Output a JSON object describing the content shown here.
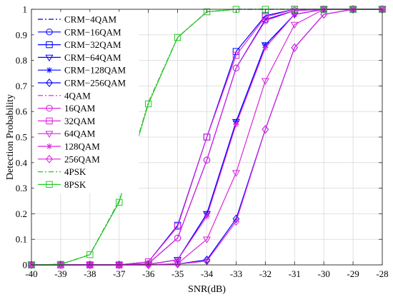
{
  "chart_data": {
    "type": "line",
    "xlabel": "SNR(dB)",
    "ylabel": "Detection Probability",
    "xlim": [
      -40,
      -28
    ],
    "ylim": [
      0,
      1
    ],
    "xticks": [
      -40,
      -39,
      -38,
      -37,
      -36,
      -35,
      -34,
      -33,
      -32,
      -31,
      -30,
      -29,
      -28
    ],
    "yticks": [
      0,
      0.1,
      0.2,
      0.3,
      0.4,
      0.5,
      0.6,
      0.7,
      0.8,
      0.9,
      1
    ],
    "grid": true,
    "legend_position": "top-left",
    "x": [
      -40,
      -39,
      -38,
      -37,
      -36,
      -35,
      -34,
      -33,
      -32,
      -31,
      -30,
      -29,
      -28
    ],
    "series": [
      {
        "name": "CRM−4QAM",
        "color": "#0000cc",
        "dash": "dashdot",
        "marker": "none",
        "values": [
          0,
          0.002,
          0.04,
          0.25,
          0.635,
          0.89,
          0.99,
          1,
          1,
          1,
          1,
          1,
          1
        ]
      },
      {
        "name": "CRM−16QAM",
        "color": "#0000ff",
        "dash": "solid",
        "marker": "circle",
        "values": [
          0,
          0,
          0,
          0,
          0.005,
          0.105,
          0.41,
          0.77,
          0.96,
          0.995,
          1,
          1,
          1
        ]
      },
      {
        "name": "CRM−32QAM",
        "color": "#0000ff",
        "dash": "solid",
        "marker": "square",
        "values": [
          0,
          0,
          0,
          0,
          0.012,
          0.155,
          0.5,
          0.835,
          0.975,
          1,
          1,
          1,
          1
        ]
      },
      {
        "name": "CRM−64QAM",
        "color": "#0000ff",
        "dash": "solid",
        "marker": "triangle-down",
        "values": [
          0,
          0,
          0,
          0,
          0.002,
          0.02,
          0.2,
          0.56,
          0.86,
          0.98,
          1,
          1,
          1
        ]
      },
      {
        "name": "CRM−128QAM",
        "color": "#0000ff",
        "dash": "solid",
        "marker": "star",
        "values": [
          0,
          0,
          0,
          0,
          0.002,
          0.02,
          0.2,
          0.56,
          0.86,
          0.98,
          1,
          1,
          1
        ]
      },
      {
        "name": "CRM−256QAM",
        "color": "#0000ff",
        "dash": "solid",
        "marker": "diamond",
        "values": [
          0,
          0,
          0,
          0,
          0,
          0.003,
          0.02,
          0.18,
          0.53,
          0.85,
          0.98,
          1,
          1
        ]
      },
      {
        "name": "4QAM",
        "color": "#ff00ff",
        "dash": "dashdot",
        "marker": "none",
        "values": [
          0,
          0.002,
          0.04,
          0.25,
          0.635,
          0.89,
          0.99,
          1,
          1,
          1,
          1,
          1,
          1
        ]
      },
      {
        "name": "16QAM",
        "color": "#dd22dd",
        "dash": "solid",
        "marker": "circle",
        "values": [
          0,
          0,
          0,
          0,
          0.005,
          0.105,
          0.41,
          0.77,
          0.955,
          0.995,
          1,
          1,
          1
        ]
      },
      {
        "name": "32QAM",
        "color": "#dd22dd",
        "dash": "solid",
        "marker": "square",
        "values": [
          0,
          0,
          0,
          0,
          0.012,
          0.15,
          0.5,
          0.82,
          0.97,
          1,
          1,
          1,
          1
        ]
      },
      {
        "name": "64QAM",
        "color": "#dd22dd",
        "dash": "solid",
        "marker": "triangle-down",
        "values": [
          0,
          0,
          0,
          0,
          0,
          0.005,
          0.1,
          0.36,
          0.72,
          0.94,
          1,
          1,
          1
        ]
      },
      {
        "name": "128QAM",
        "color": "#dd22dd",
        "dash": "solid",
        "marker": "star",
        "values": [
          0,
          0,
          0,
          0,
          0.002,
          0.02,
          0.19,
          0.55,
          0.85,
          0.98,
          1,
          1,
          1
        ]
      },
      {
        "name": "256QAM",
        "color": "#dd22dd",
        "dash": "solid",
        "marker": "diamond",
        "values": [
          0,
          0,
          0,
          0,
          0,
          0.003,
          0.015,
          0.17,
          0.53,
          0.85,
          0.98,
          1,
          1
        ]
      },
      {
        "name": "4PSK",
        "color": "#22cc22",
        "dash": "dashdot",
        "marker": "none",
        "values": [
          0,
          0.002,
          0.04,
          0.25,
          0.635,
          0.89,
          0.99,
          1,
          1,
          1,
          1,
          1,
          1
        ]
      },
      {
        "name": "8PSK",
        "color": "#22cc22",
        "dash": "solid",
        "marker": "square",
        "values": [
          0,
          0.002,
          0.04,
          0.245,
          0.63,
          0.89,
          0.99,
          1,
          1,
          1,
          1,
          1,
          1
        ]
      }
    ]
  }
}
